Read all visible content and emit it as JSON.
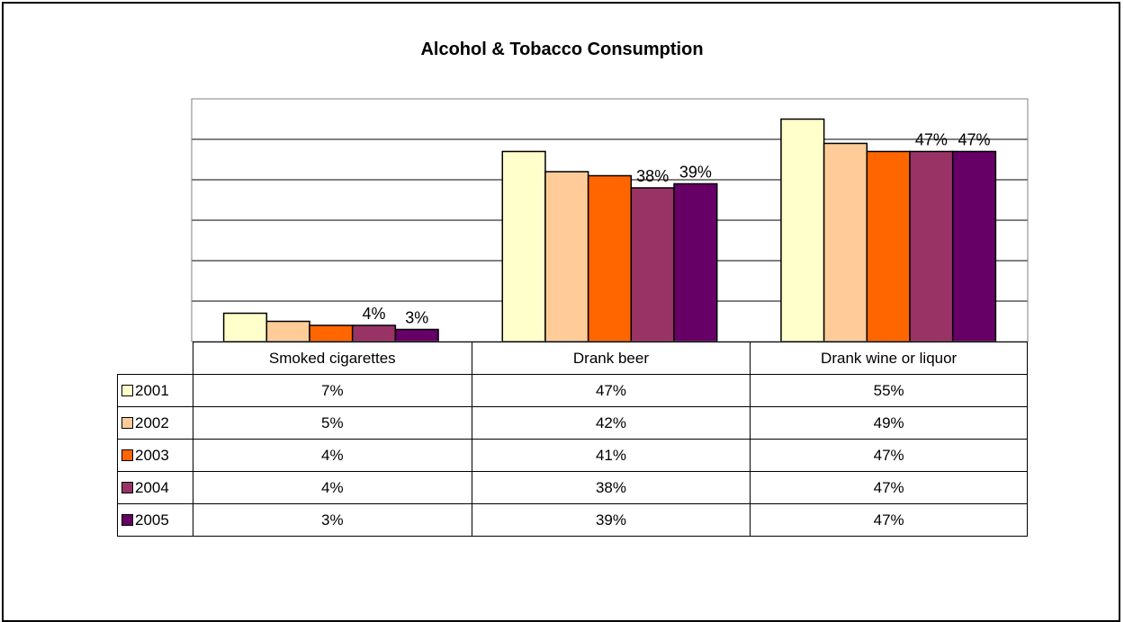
{
  "chart_data": {
    "type": "bar",
    "title": "Alcohol & Tobacco Consumption",
    "categories": [
      "Smoked cigarettes",
      "Drank beer",
      "Drank wine or liquor"
    ],
    "series": [
      {
        "name": "2001",
        "color": "#FFFFCC",
        "values": [
          7,
          47,
          55
        ],
        "labels": [
          "7%",
          "47%",
          "55%"
        ]
      },
      {
        "name": "2002",
        "color": "#FFCC99",
        "values": [
          5,
          42,
          49
        ],
        "labels": [
          "5%",
          "42%",
          "49%"
        ]
      },
      {
        "name": "2003",
        "color": "#FF6600",
        "values": [
          4,
          41,
          47
        ],
        "labels": [
          "4%",
          "41%",
          "47%"
        ]
      },
      {
        "name": "2004",
        "color": "#993366",
        "values": [
          4,
          38,
          47
        ],
        "labels": [
          "4%",
          "38%",
          "47%"
        ]
      },
      {
        "name": "2005",
        "color": "#660066",
        "values": [
          3,
          39,
          47
        ],
        "labels": [
          "3%",
          "39%",
          "47%"
        ]
      }
    ],
    "bar_labels_shown_for": [
      "2004",
      "2005"
    ],
    "ylim": [
      0,
      60
    ],
    "grid": true,
    "legend": "data-table"
  }
}
